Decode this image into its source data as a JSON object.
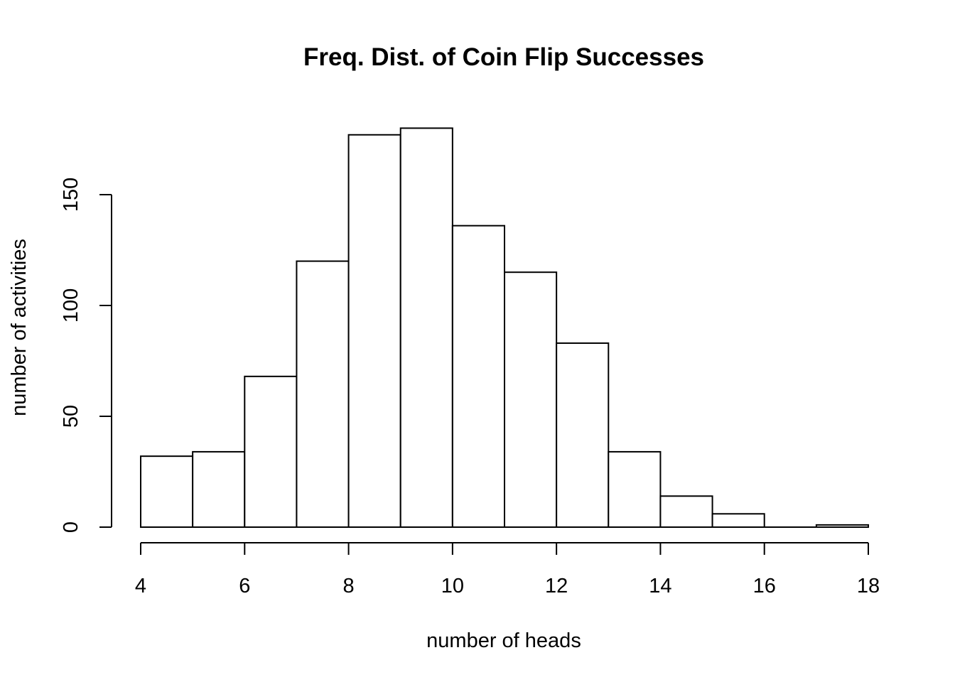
{
  "chart_data": {
    "type": "bar",
    "title": "Freq. Dist. of Coin Flip Successes",
    "xlabel": "number of heads",
    "ylabel": "number of activities",
    "bins": [
      {
        "start": 4,
        "end": 5,
        "value": 32
      },
      {
        "start": 5,
        "end": 6,
        "value": 34
      },
      {
        "start": 6,
        "end": 7,
        "value": 68
      },
      {
        "start": 7,
        "end": 8,
        "value": 120
      },
      {
        "start": 8,
        "end": 9,
        "value": 177
      },
      {
        "start": 9,
        "end": 10,
        "value": 180
      },
      {
        "start": 10,
        "end": 11,
        "value": 136
      },
      {
        "start": 11,
        "end": 12,
        "value": 115
      },
      {
        "start": 12,
        "end": 13,
        "value": 83
      },
      {
        "start": 13,
        "end": 14,
        "value": 34
      },
      {
        "start": 14,
        "end": 15,
        "value": 14
      },
      {
        "start": 15,
        "end": 16,
        "value": 6
      },
      {
        "start": 16,
        "end": 17,
        "value": 0
      },
      {
        "start": 17,
        "end": 18,
        "value": 1
      }
    ],
    "xlim": [
      4,
      18
    ],
    "ylim": [
      0,
      180
    ],
    "x_ticks": [
      4,
      6,
      8,
      10,
      12,
      14,
      16,
      18
    ],
    "y_ticks": [
      0,
      50,
      100,
      150
    ],
    "grid": false,
    "legend": "none"
  }
}
